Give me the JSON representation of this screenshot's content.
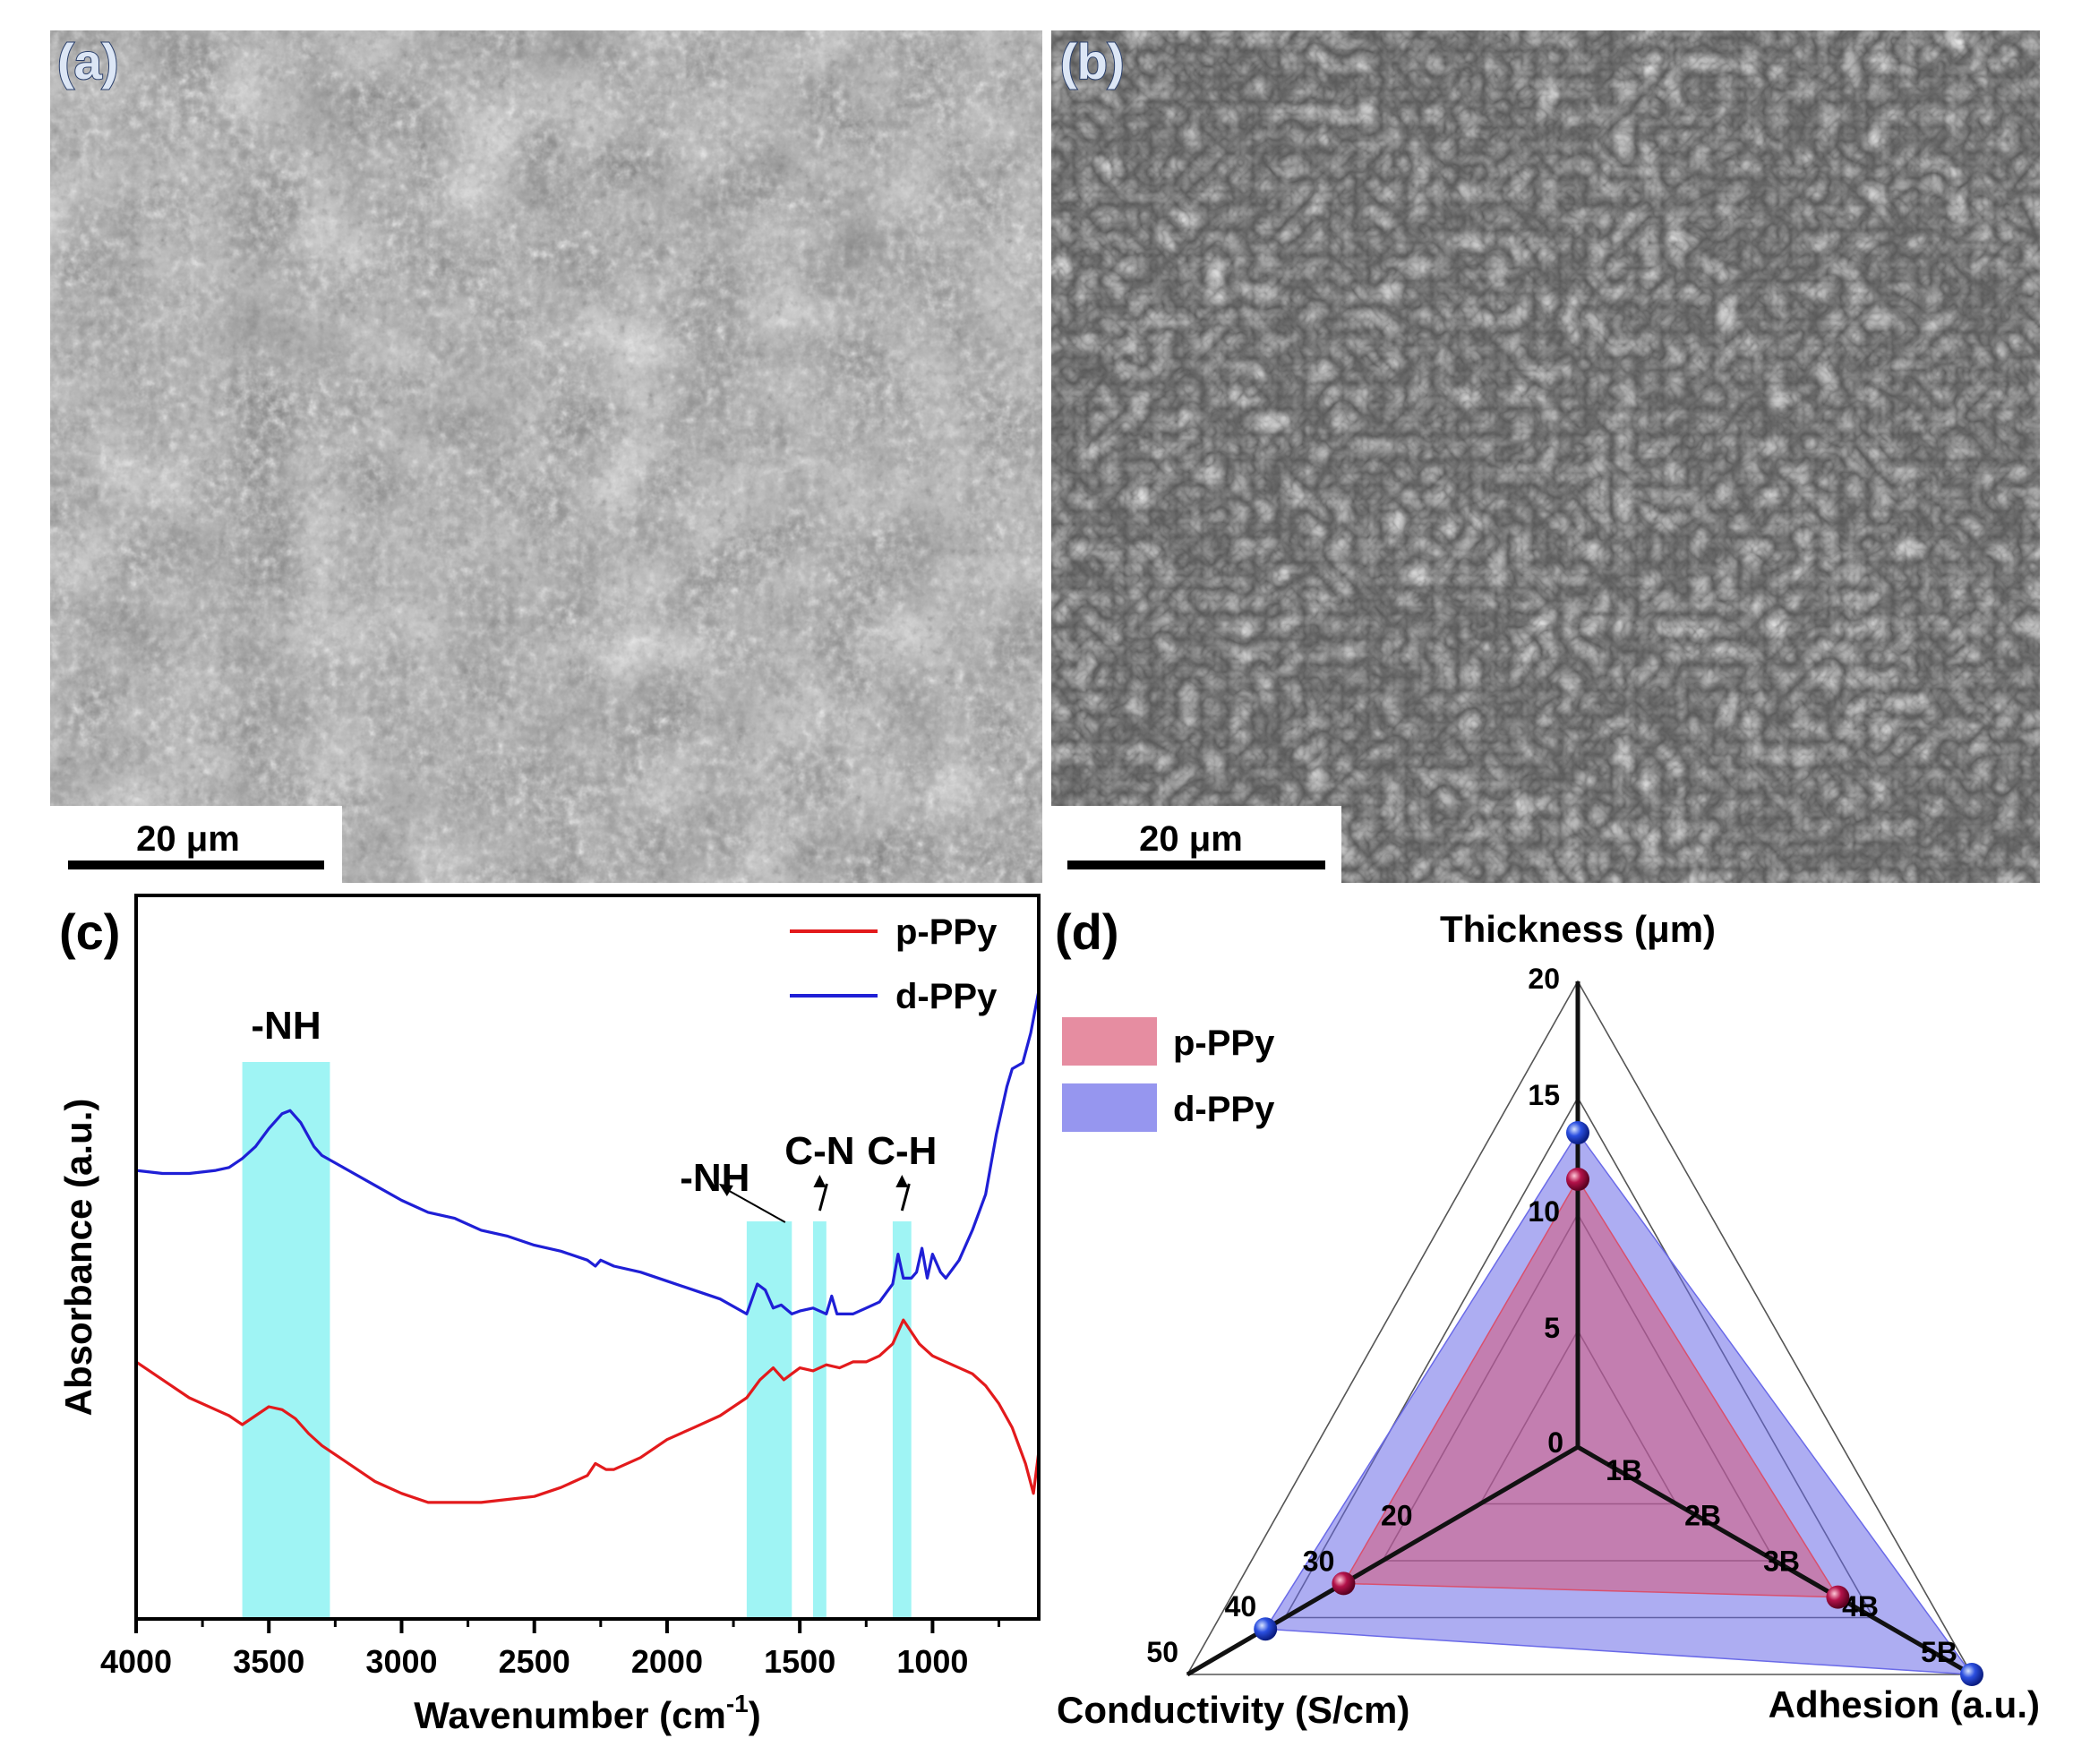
{
  "panels": {
    "a": {
      "label": "(a)",
      "scale_bar": "20 μm"
    },
    "b": {
      "label": "(b)",
      "scale_bar": "20 μm"
    },
    "c": {
      "label": "(c)"
    },
    "d": {
      "label": "(d)"
    }
  },
  "chart_data": [
    {
      "type": "line",
      "panel": "c",
      "xlabel": "Wavenumber (cm",
      "xlabel_sup": "-1",
      "xlabel_tail": ")",
      "ylabel": "Absorbance (a.u.)",
      "xlim": [
        4000,
        600
      ],
      "x_reversed": true,
      "xticks": [
        4000,
        3500,
        3000,
        2500,
        2000,
        1500,
        1000
      ],
      "xtick_labels": [
        "4000",
        "3500",
        "3000",
        "2500",
        "2000",
        "1500",
        "1000"
      ],
      "ylim": [
        0,
        100
      ],
      "legend_position": "top-right",
      "highlight_color": "#7ff0f0",
      "highlight_bands": [
        [
          3600,
          3270
        ],
        [
          1700,
          1530
        ],
        [
          1450,
          1400
        ],
        [
          1150,
          1080
        ]
      ],
      "annotations": [
        {
          "text": "-NH",
          "x": 3435
        },
        {
          "text": "-NH",
          "x": 1660
        },
        {
          "text": "C-N",
          "x": 1425
        },
        {
          "text": "C-H",
          "x": 1115
        }
      ],
      "series": [
        {
          "name": "p-PPy",
          "color": "#e31a1c",
          "points": [
            [
              4000,
              34
            ],
            [
              3900,
              31
            ],
            [
              3800,
              28
            ],
            [
              3700,
              26
            ],
            [
              3650,
              25
            ],
            [
              3600,
              23.5
            ],
            [
              3550,
              25
            ],
            [
              3500,
              26.5
            ],
            [
              3450,
              26
            ],
            [
              3400,
              24.5
            ],
            [
              3350,
              22
            ],
            [
              3300,
              20
            ],
            [
              3200,
              17
            ],
            [
              3100,
              14
            ],
            [
              3000,
              12
            ],
            [
              2900,
              10.5
            ],
            [
              2800,
              10.5
            ],
            [
              2700,
              10.5
            ],
            [
              2600,
              11
            ],
            [
              2500,
              11.5
            ],
            [
              2400,
              13
            ],
            [
              2300,
              15
            ],
            [
              2270,
              17
            ],
            [
              2230,
              16
            ],
            [
              2200,
              16
            ],
            [
              2100,
              18
            ],
            [
              2000,
              21
            ],
            [
              1900,
              23
            ],
            [
              1800,
              25
            ],
            [
              1700,
              28
            ],
            [
              1650,
              31
            ],
            [
              1600,
              33
            ],
            [
              1560,
              31
            ],
            [
              1530,
              32
            ],
            [
              1500,
              33
            ],
            [
              1450,
              32.5
            ],
            [
              1400,
              33.5
            ],
            [
              1350,
              33
            ],
            [
              1300,
              34
            ],
            [
              1250,
              34
            ],
            [
              1200,
              35
            ],
            [
              1150,
              37
            ],
            [
              1110,
              41
            ],
            [
              1080,
              39
            ],
            [
              1050,
              37
            ],
            [
              1000,
              35
            ],
            [
              950,
              34
            ],
            [
              900,
              33
            ],
            [
              850,
              32
            ],
            [
              800,
              30
            ],
            [
              750,
              27
            ],
            [
              700,
              23
            ],
            [
              650,
              17
            ],
            [
              620,
              12
            ],
            [
              600,
              19
            ]
          ]
        },
        {
          "name": "d-PPy",
          "color": "#1f1fd6",
          "points": [
            [
              4000,
              66
            ],
            [
              3900,
              65.5
            ],
            [
              3800,
              65.5
            ],
            [
              3700,
              66
            ],
            [
              3650,
              66.5
            ],
            [
              3600,
              68
            ],
            [
              3550,
              70
            ],
            [
              3500,
              73
            ],
            [
              3450,
              75.5
            ],
            [
              3420,
              76
            ],
            [
              3380,
              74
            ],
            [
              3330,
              70
            ],
            [
              3300,
              68.5
            ],
            [
              3200,
              66
            ],
            [
              3100,
              63.5
            ],
            [
              3000,
              61
            ],
            [
              2900,
              59
            ],
            [
              2800,
              58
            ],
            [
              2700,
              56
            ],
            [
              2600,
              55
            ],
            [
              2500,
              53.5
            ],
            [
              2400,
              52.5
            ],
            [
              2300,
              51
            ],
            [
              2270,
              50
            ],
            [
              2250,
              51
            ],
            [
              2200,
              50
            ],
            [
              2100,
              49
            ],
            [
              2000,
              47.5
            ],
            [
              1900,
              46
            ],
            [
              1800,
              44.5
            ],
            [
              1700,
              42
            ],
            [
              1660,
              47
            ],
            [
              1630,
              46
            ],
            [
              1600,
              43
            ],
            [
              1570,
              43.5
            ],
            [
              1530,
              42
            ],
            [
              1500,
              42.5
            ],
            [
              1450,
              43
            ],
            [
              1400,
              42
            ],
            [
              1380,
              45
            ],
            [
              1360,
              42
            ],
            [
              1300,
              42
            ],
            [
              1250,
              43
            ],
            [
              1200,
              44
            ],
            [
              1150,
              47
            ],
            [
              1130,
              52
            ],
            [
              1110,
              48
            ],
            [
              1080,
              48
            ],
            [
              1060,
              49
            ],
            [
              1040,
              53
            ],
            [
              1020,
              48
            ],
            [
              1000,
              52
            ],
            [
              970,
              49
            ],
            [
              950,
              48
            ],
            [
              900,
              51
            ],
            [
              850,
              56
            ],
            [
              800,
              62
            ],
            [
              760,
              72
            ],
            [
              720,
              80
            ],
            [
              700,
              83
            ],
            [
              660,
              84
            ],
            [
              630,
              89
            ],
            [
              600,
              96
            ]
          ]
        }
      ]
    },
    {
      "type": "radar",
      "panel": "d",
      "axes": [
        {
          "name": "Thickness (μm)",
          "max": 20,
          "ticks": [
            {
              "v": 5,
              "label": "5"
            },
            {
              "v": 10,
              "label": "10"
            },
            {
              "v": 15,
              "label": "15"
            },
            {
              "v": 20,
              "label": "20"
            }
          ]
        },
        {
          "name": "Adhesion (a.u.)",
          "max": 5,
          "ticks": [
            {
              "v": 1,
              "label": "1B"
            },
            {
              "v": 2,
              "label": "2B"
            },
            {
              "v": 3,
              "label": "3B"
            },
            {
              "v": 4,
              "label": "4B"
            },
            {
              "v": 5,
              "label": "5B"
            }
          ]
        },
        {
          "name": "Conductivity (S/cm)",
          "max": 50,
          "ticks": [
            {
              "v": 20,
              "label": "20"
            },
            {
              "v": 30,
              "label": "30"
            },
            {
              "v": 40,
              "label": "40"
            },
            {
              "v": 50,
              "label": "50"
            }
          ]
        }
      ],
      "center_label": "0",
      "series": [
        {
          "name": "p-PPy",
          "fill": "#d9506e",
          "fill_opacity": 0.5,
          "marker": "#b3124a",
          "values": [
            11.5,
            3.3,
            30
          ]
        },
        {
          "name": "d-PPy",
          "fill": "#6a6ae8",
          "fill_opacity": 0.55,
          "marker": "#1a3ad9",
          "values": [
            13.5,
            5.0,
            40
          ]
        }
      ],
      "legend_position": "top-left"
    }
  ]
}
